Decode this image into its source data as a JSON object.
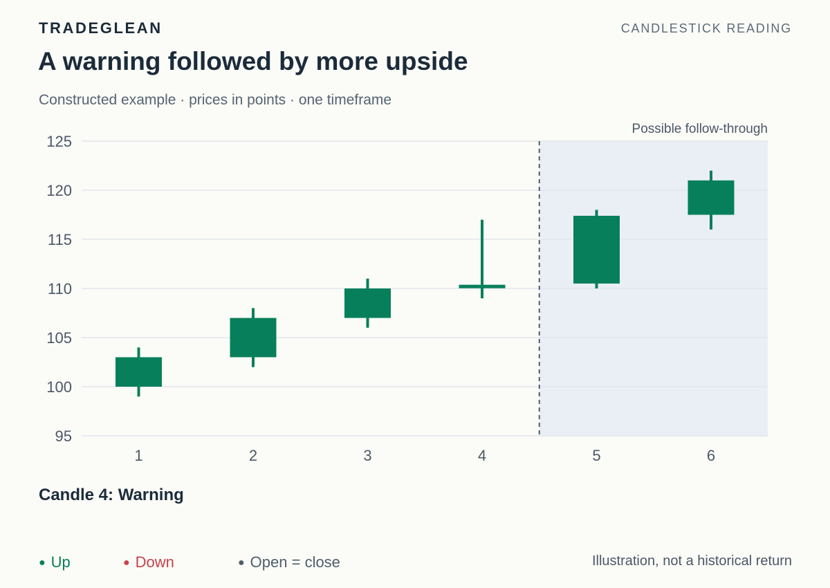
{
  "header": {
    "brand": "TRADEGLEAN",
    "kicker": "CANDLESTICK READING",
    "title": "A warning followed by more upside",
    "subtitle": "Constructed example · prices in points · one timeframe"
  },
  "chart_data": {
    "type": "candlestick",
    "x": [
      "1",
      "2",
      "3",
      "4",
      "5",
      "6"
    ],
    "open": [
      100,
      103,
      107,
      110.2,
      110.5,
      117.5
    ],
    "high": [
      104,
      108,
      111,
      117,
      118,
      122
    ],
    "low": [
      99,
      102,
      106,
      109,
      110,
      116
    ],
    "close": [
      103,
      107,
      110,
      110.2,
      117.4,
      121
    ],
    "ylim": [
      95,
      125
    ],
    "yticks": [
      95,
      100,
      105,
      110,
      115,
      120,
      125
    ],
    "grid": true,
    "shaded_region": {
      "from_candle": 5,
      "to_candle": 6,
      "label": "Possible follow-through"
    },
    "annotation": "Candle 4: Warning",
    "colors": {
      "up": "#087f5b",
      "down": "#c9424a",
      "flat": "#556372",
      "shade": "#eaeff6",
      "grid": "#dde3ea"
    }
  },
  "legend": [
    {
      "label": "Up",
      "color": "#087f5b"
    },
    {
      "label": "Down",
      "color": "#c9424a"
    },
    {
      "label": "Open = close",
      "color": "#4f5d6c"
    }
  ],
  "footer_note": "Illustration, not a historical return"
}
